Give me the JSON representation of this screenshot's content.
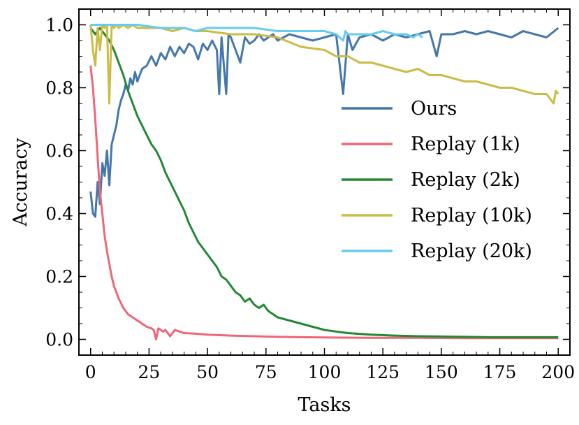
{
  "chart_data": {
    "type": "line",
    "xlabel": "Tasks",
    "ylabel": "Accuracy",
    "xlim": [
      -5,
      205
    ],
    "ylim": [
      -0.05,
      1.05
    ],
    "xticks": [
      0,
      25,
      50,
      75,
      100,
      125,
      150,
      175,
      200
    ],
    "yticks": [
      0.0,
      0.2,
      0.4,
      0.6,
      0.8,
      1.0
    ],
    "xtick_labels": [
      "0",
      "25",
      "50",
      "75",
      "100",
      "125",
      "150",
      "175",
      "200"
    ],
    "ytick_labels": [
      "0.0",
      "0.2",
      "0.4",
      "0.6",
      "0.8",
      "1.0"
    ],
    "grid": false,
    "legend": "center-right",
    "series": [
      {
        "name": "Ours",
        "color": "#4477aa",
        "x": [
          0,
          1,
          2,
          3,
          4,
          5,
          6,
          7,
          8,
          9,
          10,
          11,
          12,
          13,
          14,
          15,
          16,
          17,
          18,
          19,
          20,
          22,
          24,
          26,
          28,
          30,
          32,
          34,
          36,
          38,
          40,
          42,
          44,
          46,
          48,
          50,
          52,
          54,
          55,
          56,
          58,
          59,
          60,
          62,
          64,
          66,
          68,
          70,
          72,
          74,
          76,
          78,
          80,
          85,
          90,
          95,
          100,
          105,
          108,
          110,
          112,
          115,
          120,
          125,
          130,
          135,
          140,
          145,
          148,
          150,
          155,
          160,
          165,
          170,
          175,
          180,
          185,
          190,
          195,
          200
        ],
        "y": [
          0.47,
          0.4,
          0.39,
          0.5,
          0.43,
          0.56,
          0.52,
          0.6,
          0.49,
          0.62,
          0.65,
          0.68,
          0.73,
          0.76,
          0.78,
          0.81,
          0.79,
          0.83,
          0.81,
          0.85,
          0.82,
          0.86,
          0.87,
          0.9,
          0.87,
          0.91,
          0.89,
          0.93,
          0.9,
          0.93,
          0.91,
          0.94,
          0.93,
          0.89,
          0.94,
          0.92,
          0.95,
          0.92,
          0.78,
          0.96,
          0.78,
          0.97,
          0.96,
          0.92,
          0.88,
          0.96,
          0.94,
          0.95,
          0.97,
          0.95,
          0.96,
          0.97,
          0.95,
          0.97,
          0.96,
          0.95,
          0.96,
          0.97,
          0.78,
          0.97,
          0.92,
          0.96,
          0.97,
          0.95,
          0.97,
          0.96,
          0.97,
          0.98,
          0.9,
          0.97,
          0.97,
          0.98,
          0.97,
          0.98,
          0.97,
          0.96,
          0.98,
          0.97,
          0.96,
          0.99
        ]
      },
      {
        "name": "Replay (1k)",
        "color": "#ee6677",
        "x": [
          0,
          1,
          2,
          3,
          4,
          5,
          6,
          7,
          8,
          9,
          10,
          11,
          12,
          14,
          16,
          18,
          20,
          22,
          24,
          26,
          27,
          28,
          29,
          30,
          31,
          32,
          33,
          34,
          35,
          36,
          38,
          40,
          45,
          50,
          60,
          70,
          80,
          90,
          100,
          120,
          140,
          160,
          180,
          200
        ],
        "y": [
          0.87,
          0.8,
          0.7,
          0.58,
          0.47,
          0.4,
          0.33,
          0.28,
          0.24,
          0.2,
          0.17,
          0.15,
          0.13,
          0.1,
          0.08,
          0.07,
          0.06,
          0.05,
          0.04,
          0.035,
          0.03,
          0.0,
          0.035,
          0.03,
          0.025,
          0.03,
          0.02,
          0.01,
          0.02,
          0.03,
          0.025,
          0.02,
          0.018,
          0.015,
          0.012,
          0.01,
          0.008,
          0.007,
          0.006,
          0.005,
          0.005,
          0.004,
          0.004,
          0.004
        ]
      },
      {
        "name": "Replay (2k)",
        "color": "#228833",
        "x": [
          0,
          2,
          4,
          6,
          8,
          10,
          12,
          14,
          16,
          18,
          20,
          22,
          24,
          26,
          28,
          30,
          32,
          34,
          36,
          38,
          40,
          42,
          44,
          46,
          48,
          50,
          52,
          54,
          56,
          58,
          60,
          62,
          64,
          66,
          68,
          70,
          72,
          74,
          76,
          78,
          80,
          85,
          90,
          95,
          100,
          105,
          110,
          120,
          130,
          140,
          150,
          160,
          170,
          180,
          190,
          200
        ],
        "y": [
          0.99,
          0.97,
          0.99,
          0.97,
          0.95,
          0.92,
          0.88,
          0.84,
          0.79,
          0.75,
          0.71,
          0.68,
          0.65,
          0.62,
          0.6,
          0.57,
          0.53,
          0.5,
          0.47,
          0.44,
          0.41,
          0.37,
          0.34,
          0.31,
          0.29,
          0.27,
          0.25,
          0.23,
          0.2,
          0.19,
          0.17,
          0.15,
          0.14,
          0.12,
          0.13,
          0.11,
          0.1,
          0.11,
          0.09,
          0.08,
          0.07,
          0.06,
          0.05,
          0.04,
          0.03,
          0.025,
          0.02,
          0.015,
          0.012,
          0.01,
          0.009,
          0.008,
          0.007,
          0.007,
          0.007,
          0.007
        ]
      },
      {
        "name": "Replay (10k)",
        "color": "#ccbb44",
        "x": [
          0,
          1,
          2,
          3,
          4,
          5,
          6,
          7,
          8,
          9,
          10,
          11,
          12,
          14,
          16,
          18,
          20,
          25,
          30,
          35,
          40,
          45,
          50,
          60,
          70,
          80,
          90,
          100,
          105,
          110,
          115,
          120,
          125,
          130,
          135,
          140,
          145,
          150,
          155,
          160,
          165,
          170,
          175,
          180,
          185,
          190,
          195,
          198,
          199,
          200
        ],
        "y": [
          1.0,
          0.92,
          0.87,
          0.99,
          0.92,
          1.0,
          0.99,
          1.0,
          0.75,
          1.0,
          0.99,
          1.0,
          0.99,
          1.0,
          0.99,
          1.0,
          0.99,
          0.99,
          0.99,
          0.98,
          0.99,
          0.98,
          0.98,
          0.97,
          0.97,
          0.96,
          0.93,
          0.92,
          0.9,
          0.9,
          0.88,
          0.88,
          0.87,
          0.86,
          0.85,
          0.86,
          0.84,
          0.84,
          0.83,
          0.82,
          0.82,
          0.81,
          0.8,
          0.8,
          0.79,
          0.78,
          0.78,
          0.75,
          0.79,
          0.78
        ]
      },
      {
        "name": "Replay (20k)",
        "color": "#66ccee",
        "x": [
          0,
          10,
          20,
          30,
          40,
          45,
          50,
          60,
          70,
          80,
          90,
          100,
          105,
          108,
          109,
          110,
          115,
          120,
          125,
          130,
          135,
          138,
          140,
          142
        ],
        "y": [
          1.0,
          1.0,
          1.0,
          0.99,
          0.99,
          0.98,
          0.99,
          0.99,
          0.99,
          0.98,
          0.98,
          0.98,
          0.97,
          0.95,
          0.98,
          0.97,
          0.97,
          0.97,
          0.98,
          0.97,
          0.97,
          0.96,
          0.97,
          0.96
        ]
      }
    ]
  }
}
